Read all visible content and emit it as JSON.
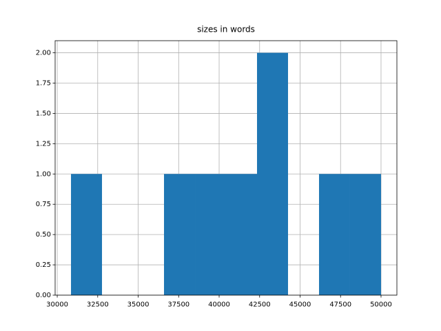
{
  "chart_data": {
    "type": "histogram",
    "title": "sizes in words",
    "bins": [
      30850,
      32765,
      34680,
      36595,
      38510,
      40425,
      42340,
      44255,
      46170,
      48085,
      50000
    ],
    "values": [
      1,
      0,
      0,
      1,
      1,
      1,
      2,
      0,
      1,
      1
    ],
    "color": "#1f77b4",
    "xlim": [
      29870,
      50980
    ],
    "xticks": [
      30000,
      32500,
      35000,
      37500,
      40000,
      42500,
      45000,
      47500,
      50000
    ],
    "ylim": [
      0,
      2.1
    ],
    "yticks": [
      {
        "value": 0,
        "label": "0.00"
      },
      {
        "value": 0.25,
        "label": "0.25"
      },
      {
        "value": 0.5,
        "label": "0.50"
      },
      {
        "value": 0.75,
        "label": "0.75"
      },
      {
        "value": 1,
        "label": "1.00"
      },
      {
        "value": 1.25,
        "label": "1.25"
      },
      {
        "value": 1.5,
        "label": "1.50"
      },
      {
        "value": 1.75,
        "label": "1.75"
      },
      {
        "value": 2,
        "label": "2.00"
      }
    ],
    "grid": true
  }
}
